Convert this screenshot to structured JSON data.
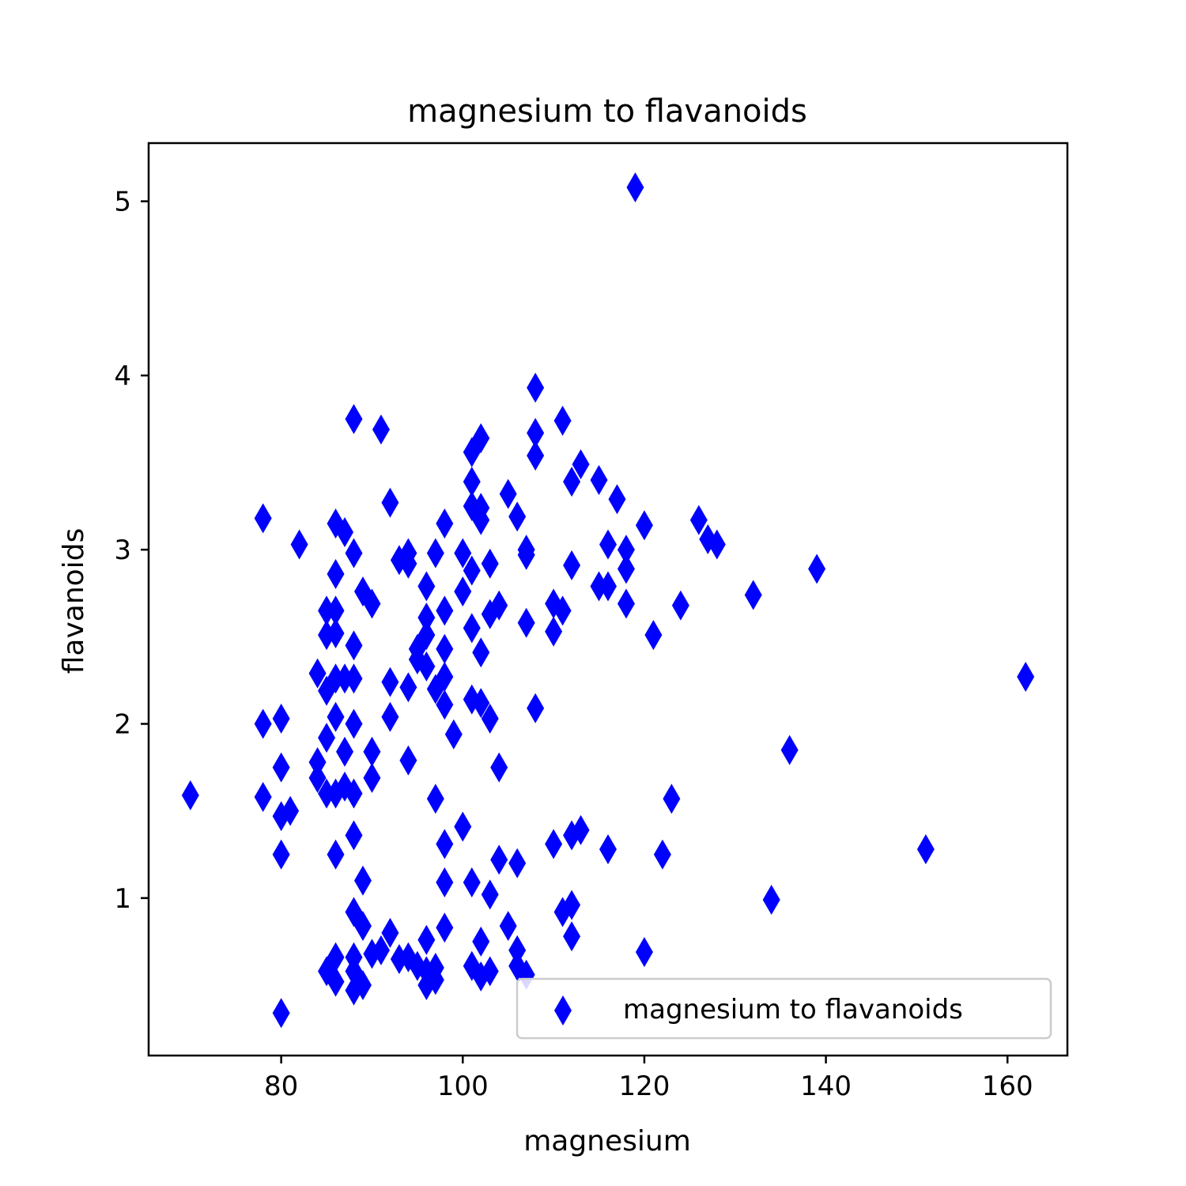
{
  "chart_data": {
    "type": "scatter",
    "title": "magnesium to flavanoids",
    "xlabel": "magnesium",
    "ylabel": "flavanoids",
    "xlim": [
      65.4,
      166.6
    ],
    "ylim": [
      0.096,
      5.334
    ],
    "xticks": [
      80,
      100,
      120,
      140,
      160
    ],
    "yticks": [
      1,
      2,
      3,
      4,
      5
    ],
    "grid": false,
    "legend_position": "lower-right",
    "marker": "thin-diamond",
    "color": "#0000ff",
    "series": [
      {
        "name": "magnesium to flavanoids",
        "points": [
          [
            70,
            1.59
          ],
          [
            78,
            3.18
          ],
          [
            78,
            2.0
          ],
          [
            78,
            1.58
          ],
          [
            80,
            2.03
          ],
          [
            80,
            1.75
          ],
          [
            80,
            1.47
          ],
          [
            80,
            1.25
          ],
          [
            80,
            0.34
          ],
          [
            81,
            1.5
          ],
          [
            82,
            3.03
          ],
          [
            84,
            2.29
          ],
          [
            84,
            1.78
          ],
          [
            84,
            1.69
          ],
          [
            85,
            2.65
          ],
          [
            85,
            2.51
          ],
          [
            85,
            2.19
          ],
          [
            85,
            1.92
          ],
          [
            85,
            1.6
          ],
          [
            85,
            0.58
          ],
          [
            86,
            3.15
          ],
          [
            86,
            2.86
          ],
          [
            86,
            2.65
          ],
          [
            86,
            2.52
          ],
          [
            86,
            2.26
          ],
          [
            86,
            2.04
          ],
          [
            86,
            1.6
          ],
          [
            86,
            1.25
          ],
          [
            86,
            0.66
          ],
          [
            86,
            0.52
          ],
          [
            87,
            3.1
          ],
          [
            87,
            2.26
          ],
          [
            87,
            1.84
          ],
          [
            87,
            1.64
          ],
          [
            88,
            3.75
          ],
          [
            88,
            2.98
          ],
          [
            88,
            2.45
          ],
          [
            88,
            2.26
          ],
          [
            88,
            2.0
          ],
          [
            88,
            1.6
          ],
          [
            88,
            1.36
          ],
          [
            88,
            0.92
          ],
          [
            88,
            0.66
          ],
          [
            88,
            0.58
          ],
          [
            88,
            0.47
          ],
          [
            89,
            2.76
          ],
          [
            89,
            1.1
          ],
          [
            89,
            0.84
          ],
          [
            89,
            0.5
          ],
          [
            90,
            2.69
          ],
          [
            90,
            1.84
          ],
          [
            90,
            1.69
          ],
          [
            90,
            0.68
          ],
          [
            91,
            3.69
          ],
          [
            91,
            0.7
          ],
          [
            92,
            3.27
          ],
          [
            92,
            2.24
          ],
          [
            92,
            2.04
          ],
          [
            92,
            0.8
          ],
          [
            93,
            2.94
          ],
          [
            93,
            0.65
          ],
          [
            94,
            2.98
          ],
          [
            94,
            2.92
          ],
          [
            94,
            2.21
          ],
          [
            94,
            1.79
          ],
          [
            94,
            0.66
          ],
          [
            95,
            2.43
          ],
          [
            95,
            2.37
          ],
          [
            95,
            0.61
          ],
          [
            96,
            2.79
          ],
          [
            96,
            2.61
          ],
          [
            96,
            2.51
          ],
          [
            96,
            2.33
          ],
          [
            96,
            0.76
          ],
          [
            96,
            0.58
          ],
          [
            96,
            0.5
          ],
          [
            97,
            2.98
          ],
          [
            97,
            2.2
          ],
          [
            97,
            1.57
          ],
          [
            97,
            0.6
          ],
          [
            97,
            0.53
          ],
          [
            98,
            3.15
          ],
          [
            98,
            2.65
          ],
          [
            98,
            2.43
          ],
          [
            98,
            2.27
          ],
          [
            98,
            2.11
          ],
          [
            98,
            1.31
          ],
          [
            98,
            1.09
          ],
          [
            98,
            0.83
          ],
          [
            99,
            1.94
          ],
          [
            100,
            2.98
          ],
          [
            100,
            2.76
          ],
          [
            100,
            1.41
          ],
          [
            101,
            3.56
          ],
          [
            101,
            3.39
          ],
          [
            101,
            3.25
          ],
          [
            101,
            2.88
          ],
          [
            101,
            2.55
          ],
          [
            101,
            2.14
          ],
          [
            101,
            1.09
          ],
          [
            101,
            0.61
          ],
          [
            102,
            3.64
          ],
          [
            102,
            3.24
          ],
          [
            102,
            3.17
          ],
          [
            102,
            2.41
          ],
          [
            102,
            2.12
          ],
          [
            102,
            0.75
          ],
          [
            102,
            0.55
          ],
          [
            103,
            2.92
          ],
          [
            103,
            2.63
          ],
          [
            103,
            2.03
          ],
          [
            103,
            1.02
          ],
          [
            103,
            0.58
          ],
          [
            104,
            2.68
          ],
          [
            104,
            1.75
          ],
          [
            104,
            1.22
          ],
          [
            105,
            3.32
          ],
          [
            105,
            0.84
          ],
          [
            106,
            3.19
          ],
          [
            106,
            1.2
          ],
          [
            106,
            0.7
          ],
          [
            106,
            0.61
          ],
          [
            107,
            3.0
          ],
          [
            107,
            2.97
          ],
          [
            107,
            2.58
          ],
          [
            107,
            0.56
          ],
          [
            108,
            3.93
          ],
          [
            108,
            3.67
          ],
          [
            108,
            3.54
          ],
          [
            108,
            2.09
          ],
          [
            110,
            2.69
          ],
          [
            110,
            2.53
          ],
          [
            110,
            1.31
          ],
          [
            111,
            3.74
          ],
          [
            111,
            2.65
          ],
          [
            111,
            0.92
          ],
          [
            112,
            3.39
          ],
          [
            112,
            2.91
          ],
          [
            112,
            1.36
          ],
          [
            112,
            0.96
          ],
          [
            112,
            0.78
          ],
          [
            113,
            3.49
          ],
          [
            113,
            1.39
          ],
          [
            115,
            3.4
          ],
          [
            115,
            2.79
          ],
          [
            116,
            3.03
          ],
          [
            116,
            2.79
          ],
          [
            116,
            1.28
          ],
          [
            117,
            3.29
          ],
          [
            118,
            3.0
          ],
          [
            118,
            2.89
          ],
          [
            118,
            2.69
          ],
          [
            119,
            5.08
          ],
          [
            120,
            3.14
          ],
          [
            120,
            0.69
          ],
          [
            121,
            2.51
          ],
          [
            122,
            1.25
          ],
          [
            123,
            1.57
          ],
          [
            124,
            2.68
          ],
          [
            126,
            3.17
          ],
          [
            127,
            3.06
          ],
          [
            128,
            3.03
          ],
          [
            132,
            2.74
          ],
          [
            134,
            0.99
          ],
          [
            136,
            1.85
          ],
          [
            139,
            2.89
          ],
          [
            151,
            1.28
          ],
          [
            162,
            2.27
          ]
        ]
      }
    ]
  }
}
